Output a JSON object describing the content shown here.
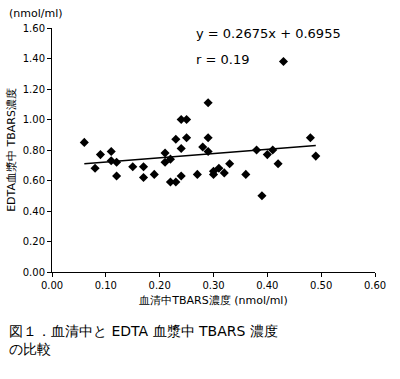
{
  "chart_data": {
    "type": "scatter",
    "x_label": "血清中TBARS濃度 (nmol/ml)",
    "y_label": "EDTA血漿中 TBARS濃度",
    "y_unit": "(nmol/ml)",
    "annotations": [
      "y = 0.2675x + 0.6955",
      "r = 0.19"
    ],
    "caption": [
      "図１．血清中と EDTA 血漿中 TBARS 濃度",
      "の比較"
    ],
    "series": [
      {
        "type": "scatter",
        "marker": "diamond",
        "color": "#000000",
        "x": [
          0.06,
          0.08,
          0.09,
          0.11,
          0.11,
          0.12,
          0.12,
          0.15,
          0.17,
          0.17,
          0.19,
          0.21,
          0.21,
          0.22,
          0.22,
          0.23,
          0.23,
          0.24,
          0.24,
          0.24,
          0.25,
          0.25,
          0.27,
          0.28,
          0.29,
          0.29,
          0.29,
          0.3,
          0.3,
          0.31,
          0.32,
          0.33,
          0.36,
          0.38,
          0.39,
          0.4,
          0.41,
          0.42,
          0.43,
          0.48,
          0.49
        ],
        "values": [
          0.85,
          0.68,
          0.77,
          0.79,
          0.73,
          0.63,
          0.72,
          0.69,
          0.69,
          0.62,
          0.64,
          0.72,
          0.78,
          0.74,
          0.59,
          0.87,
          0.59,
          0.63,
          0.81,
          1.0,
          0.88,
          1.0,
          0.64,
          0.82,
          0.88,
          0.79,
          1.11,
          0.66,
          0.64,
          0.68,
          0.65,
          0.71,
          0.64,
          0.8,
          0.5,
          0.77,
          0.8,
          0.71,
          1.38,
          0.88,
          0.76
        ]
      },
      {
        "type": "line",
        "line_style": "solid",
        "color": "#000000",
        "x": [
          0.06,
          0.49
        ],
        "values": [
          0.71,
          0.83
        ]
      }
    ],
    "xlim": [
      0,
      0.6
    ],
    "xticks": [
      {
        "value": 0,
        "label": "0.00"
      },
      {
        "value": 0.1,
        "label": "0.10"
      },
      {
        "value": 0.2,
        "label": "0.20"
      },
      {
        "value": 0.3,
        "label": "0.30"
      },
      {
        "value": 0.4,
        "label": "0.40"
      },
      {
        "value": 0.5,
        "label": "0.50"
      },
      {
        "value": 0.6,
        "label": "0.60"
      }
    ],
    "ylim": [
      0,
      1.6
    ],
    "yticks": [
      {
        "value": 0,
        "label": "0.00"
      },
      {
        "value": 0.2,
        "label": "0.20"
      },
      {
        "value": 0.4,
        "label": "0.40"
      },
      {
        "value": 0.6,
        "label": "0.60"
      },
      {
        "value": 0.8,
        "label": "0.80"
      },
      {
        "value": 1.0,
        "label": "1.00"
      },
      {
        "value": 1.2,
        "label": "1.20"
      },
      {
        "value": 1.4,
        "label": "1.40"
      },
      {
        "value": 1.6,
        "label": "1.60"
      }
    ],
    "grid": false
  }
}
